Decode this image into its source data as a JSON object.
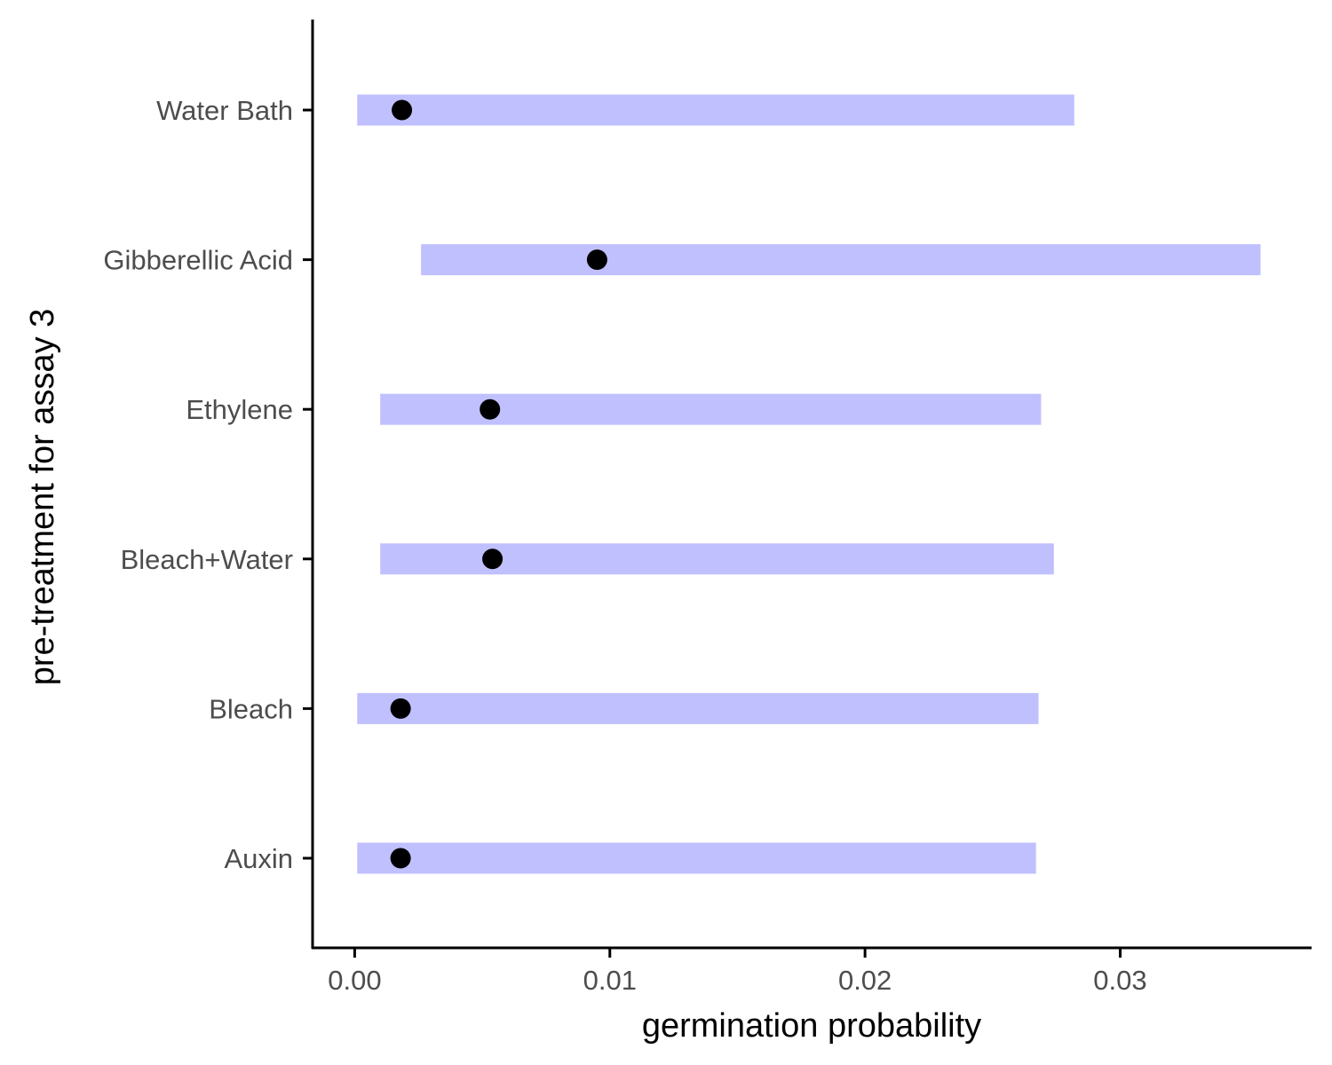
{
  "chart_data": {
    "type": "interval",
    "orientation": "horizontal",
    "title": "",
    "xlabel": "germination probability",
    "ylabel": "pre-treatment for assay 3",
    "xlim": [
      -0.00165,
      0.0375
    ],
    "x_ticks": [
      0.0,
      0.01,
      0.02,
      0.03
    ],
    "x_tick_labels": [
      "0.00",
      "0.01",
      "0.02",
      "0.03"
    ],
    "categories": [
      "Water Bath",
      "Gibberellic Acid",
      "Ethylene",
      "Bleach+Water",
      "Bleach",
      "Auxin"
    ],
    "estimate": [
      0.00185,
      0.0095,
      0.0053,
      0.0054,
      0.0018,
      0.0018
    ],
    "lower": [
      0.0001,
      0.0026,
      0.001,
      0.001,
      0.0001,
      0.0001
    ],
    "upper": [
      0.0282,
      0.0355,
      0.0269,
      0.0274,
      0.0268,
      0.0267
    ],
    "interval_color": "#c0c0ff",
    "point_color": "#000000",
    "axis_color": "#000000",
    "grid": false
  }
}
